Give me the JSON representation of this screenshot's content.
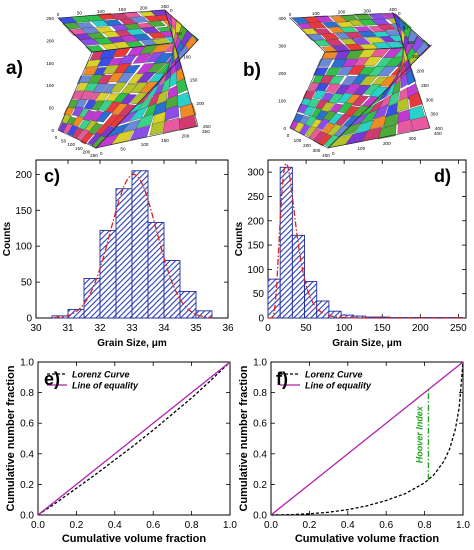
{
  "panels": {
    "a": {
      "label": "a)"
    },
    "b": {
      "label": "b)"
    },
    "c": {
      "label": "c)"
    },
    "d": {
      "label": "d)"
    },
    "e": {
      "label": "e)"
    },
    "f": {
      "label": "f)"
    }
  },
  "cube_a": {
    "top_back_ticks": [
      "0",
      "50",
      "100",
      "150",
      "200",
      "250"
    ],
    "right_ticks": [
      "0",
      "50",
      "100",
      "150",
      "200",
      "250"
    ],
    "left_ticks": [
      "250",
      "200",
      "150",
      "100",
      "50",
      "0"
    ],
    "bottom_ticks": [
      "0",
      "50",
      "100",
      "150",
      "200",
      "250"
    ],
    "front_ticks": [
      "0",
      "50",
      "100",
      "150",
      "200",
      "250"
    ]
  },
  "cube_b": {
    "top_back_ticks": [
      "0",
      "100",
      "200",
      "300",
      "400"
    ],
    "right_ticks": [
      "0",
      "50",
      "100",
      "150",
      "200",
      "250",
      "300",
      "350",
      "400"
    ],
    "left_ticks": [
      "400",
      "300",
      "200",
      "100",
      "0"
    ],
    "bottom_ticks": [
      "0",
      "100",
      "200",
      "300",
      "400"
    ],
    "front_ticks": [
      "0",
      "100",
      "200",
      "300",
      "400"
    ]
  },
  "hoover_label": "Hoover Index",
  "colors": {
    "bar_stroke": "#1f2d9c",
    "hatch": "#2b3fb8",
    "fit": "#d62424",
    "lorenz": "#000000",
    "equality": "#b01fb0",
    "hoover": "#27a327"
  },
  "chart_data": [
    {
      "id": "c",
      "type": "bar",
      "bar_style": "hatched-histogram",
      "xlabel": "Grain Size, μm",
      "ylabel": "Counts",
      "xlim": [
        30,
        36
      ],
      "ylim": [
        0,
        220
      ],
      "xticks": [
        30,
        31,
        32,
        33,
        34,
        35,
        36
      ],
      "yticks": [
        0,
        50,
        100,
        150,
        200
      ],
      "bin_width": 0.5,
      "bins": [
        30.75,
        31.25,
        31.75,
        32.25,
        32.75,
        33.25,
        33.75,
        34.25,
        34.75,
        35.25
      ],
      "values": [
        3,
        12,
        55,
        122,
        180,
        205,
        133,
        80,
        37,
        10
      ],
      "fit": {
        "kind": "normal",
        "mean": 33.05,
        "sd": 0.72,
        "peak": 200
      }
    },
    {
      "id": "d",
      "type": "bar",
      "bar_style": "hatched-histogram",
      "xlabel": "Grain Size, μm",
      "ylabel": "Counts",
      "xlim": [
        0,
        260
      ],
      "ylim": [
        0,
        325
      ],
      "xticks": [
        0,
        50,
        100,
        150,
        200,
        250
      ],
      "yticks": [
        0,
        50,
        100,
        150,
        200,
        250,
        300
      ],
      "bin_width": 16,
      "bins": [
        8,
        24,
        40,
        56,
        72,
        88,
        104,
        120,
        136,
        152,
        168,
        184,
        200,
        216,
        232,
        248
      ],
      "values": [
        80,
        310,
        170,
        75,
        35,
        14,
        6,
        4,
        2,
        2,
        1,
        1,
        1,
        1,
        1,
        1
      ],
      "fit": {
        "kind": "lognormal",
        "mu": 3.35,
        "sigma": 0.42,
        "peak": 318
      }
    },
    {
      "id": "e",
      "type": "line",
      "xlabel": "Cumulative volume fraction",
      "ylabel": "Cumulative number fraction",
      "xlim": [
        0,
        1
      ],
      "ylim": [
        0,
        1
      ],
      "xticks": [
        0.0,
        0.2,
        0.4,
        0.6,
        0.8,
        1.0
      ],
      "yticks": [
        0.0,
        0.2,
        0.4,
        0.6,
        0.8,
        1.0
      ],
      "legend_position": "top-left",
      "series": [
        {
          "name": "Lorenz Curve",
          "style": "dashed",
          "x": [
            0,
            0.1,
            0.2,
            0.3,
            0.4,
            0.5,
            0.6,
            0.7,
            0.8,
            0.9,
            1.0
          ],
          "y": [
            0,
            0.085,
            0.175,
            0.265,
            0.36,
            0.455,
            0.555,
            0.66,
            0.765,
            0.88,
            1.0
          ]
        },
        {
          "name": "Line of equality",
          "style": "solid",
          "x": [
            0,
            1
          ],
          "y": [
            0,
            1
          ]
        }
      ]
    },
    {
      "id": "f",
      "type": "line",
      "xlabel": "Cumulative volume fraction",
      "ylabel": "Cumulative number fraction",
      "xlim": [
        0,
        1
      ],
      "ylim": [
        0,
        1
      ],
      "xticks": [
        0.0,
        0.2,
        0.4,
        0.6,
        0.8,
        1.0
      ],
      "yticks": [
        0.0,
        0.2,
        0.4,
        0.6,
        0.8,
        1.0
      ],
      "legend_position": "top-left",
      "series": [
        {
          "name": "Lorenz Curve",
          "style": "dashed",
          "x": [
            0,
            0.1,
            0.2,
            0.3,
            0.4,
            0.5,
            0.6,
            0.7,
            0.8,
            0.85,
            0.9,
            0.93,
            0.96,
            0.98,
            1.0
          ],
          "y": [
            0,
            0.002,
            0.008,
            0.018,
            0.035,
            0.06,
            0.095,
            0.14,
            0.21,
            0.265,
            0.35,
            0.43,
            0.56,
            0.7,
            1.0
          ]
        },
        {
          "name": "Line of equality",
          "style": "solid",
          "x": [
            0,
            1
          ],
          "y": [
            0,
            1
          ]
        }
      ],
      "hoover": {
        "x": 0.82,
        "y_from": 0.23,
        "y_to": 0.82
      }
    }
  ]
}
